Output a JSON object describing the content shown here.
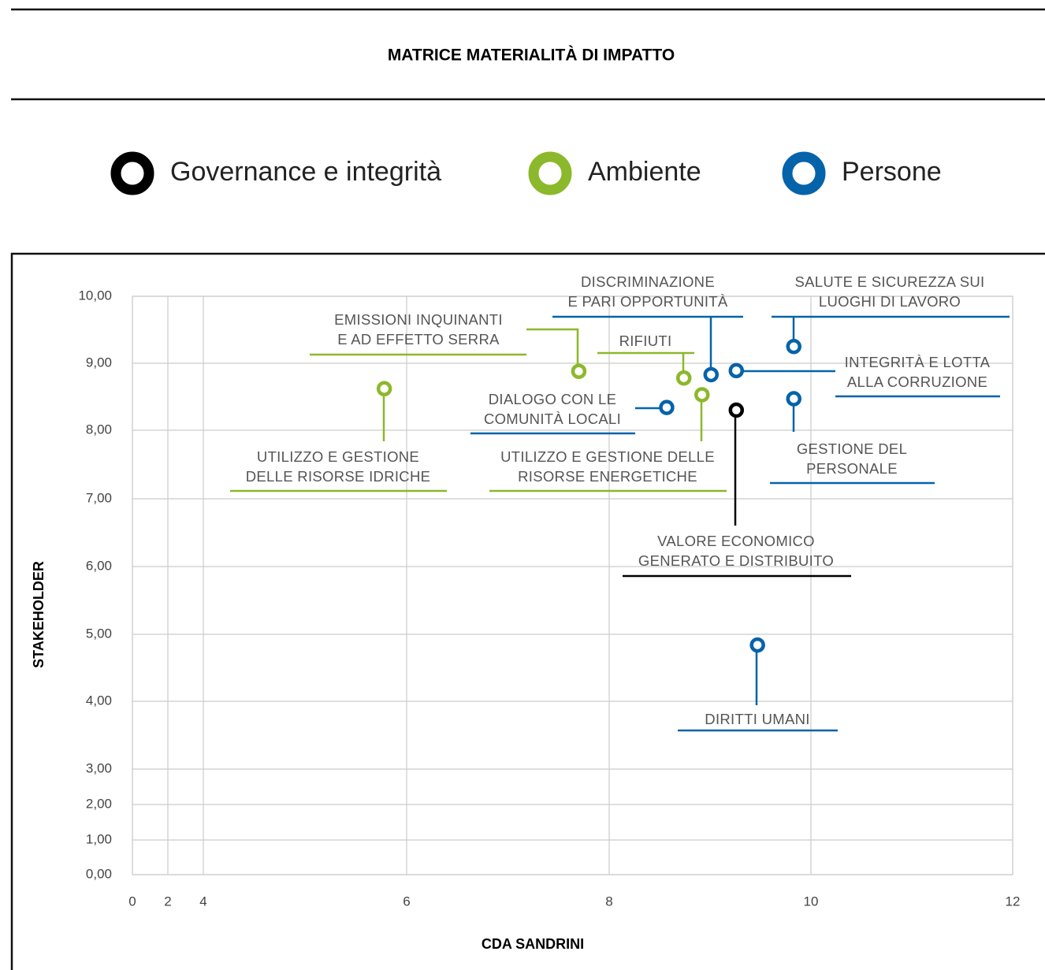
{
  "chart_data": {
    "type": "scatter",
    "title": "MATRICE MATERIALITÀ DI IMPATTO",
    "xlabel": "CDA SANDRINI",
    "ylabel": "STAKEHOLDER",
    "xlim": [
      0,
      12
    ],
    "xticks": [
      0,
      2,
      4,
      6,
      8,
      10,
      12
    ],
    "ylim": [
      0,
      10
    ],
    "yticks": [
      {
        "value": 0,
        "label": "0,00"
      },
      {
        "value": 1,
        "label": "1,00"
      },
      {
        "value": 2,
        "label": "2,00"
      },
      {
        "value": 3,
        "label": "3,00"
      },
      {
        "value": 4,
        "label": "4,00"
      },
      {
        "value": 5,
        "label": "5,00"
      },
      {
        "value": 6,
        "label": "6,00"
      },
      {
        "value": 7,
        "label": "7,00"
      },
      {
        "value": 8,
        "label": "8,00"
      },
      {
        "value": 9,
        "label": "9,00"
      },
      {
        "value": 10,
        "label": "10,00"
      }
    ],
    "grid": true,
    "series": [
      {
        "name": "Governance e integrità",
        "color": "#000000",
        "x": [
          9.26
        ],
        "values": [
          8.3
        ],
        "labels": [
          [
            "VALORE ECONOMICO",
            "GENERATO E DISTRIBUITO"
          ]
        ]
      },
      {
        "name": "Ambiente",
        "color": "#8cb82b",
        "x": [
          7.7,
          5.78,
          8.74,
          8.92
        ],
        "values": [
          8.88,
          8.62,
          8.78,
          8.53
        ],
        "labels": [
          [
            "EMISSIONI INQUINANTI",
            "E AD EFFETTO SERRA"
          ],
          [
            "UTILIZZO E GESTIONE",
            "DELLE RISORSE IDRICHE"
          ],
          [
            "RIFIUTI"
          ],
          [
            "UTILIZZO E GESTIONE DELLE",
            "RISORSE ENERGETICHE"
          ]
        ]
      },
      {
        "name": "Persone",
        "color": "#0563aa",
        "x": [
          9.01,
          9.26,
          8.57,
          9.83,
          9.83,
          9.47
        ],
        "values": [
          8.83,
          8.89,
          8.34,
          9.25,
          8.47,
          4.84
        ],
        "labels": [
          [
            "DISCRIMINAZIONE",
            "E PARI OPPORTUNITÀ"
          ],
          [
            "INTEGRITÀ E LOTTA",
            "ALLA CORRUZIONE"
          ],
          [
            "DIALOGO CON LE",
            "COMUNITÀ LOCALI"
          ],
          [
            "SALUTE E SICUREZZA SUI",
            "LUOGHI DI LAVORO"
          ],
          [
            "GESTIONE DEL",
            "PERSONALE"
          ],
          [
            "DIRITTI UMANI"
          ]
        ]
      }
    ]
  }
}
